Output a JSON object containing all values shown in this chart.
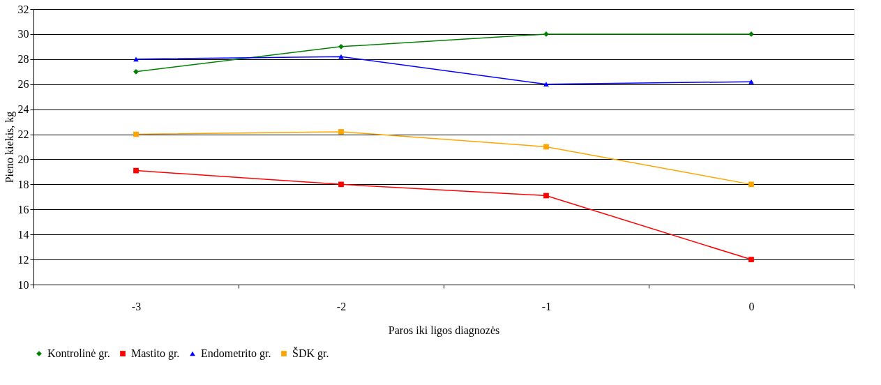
{
  "chart_data": {
    "type": "line",
    "xlabel": "Paros iki ligos diagnozės",
    "ylabel": "Pieno kiekis, kg",
    "categories": [
      "-3",
      "-2",
      "-1",
      "0"
    ],
    "series": [
      {
        "name": "Kontrolinė gr.",
        "color": "#008000",
        "marker": "diamond",
        "values": [
          27,
          29,
          30,
          30
        ]
      },
      {
        "name": "Mastito gr.",
        "color": "#ff0000",
        "marker": "square",
        "values": [
          19.1,
          18,
          17.1,
          12
        ]
      },
      {
        "name": "Endometrito gr.",
        "color": "#0000ff",
        "marker": "triangle",
        "values": [
          28,
          28.2,
          26,
          26.2
        ]
      },
      {
        "name": "ŠDK gr.",
        "color": "#ffa500",
        "marker": "square",
        "values": [
          22,
          22.2,
          21,
          18
        ]
      }
    ],
    "ylim": [
      10,
      32
    ],
    "yticks": [
      10,
      12,
      14,
      16,
      18,
      20,
      22,
      24,
      26,
      28,
      30,
      32
    ],
    "grid": "y",
    "legend": "bottom"
  }
}
